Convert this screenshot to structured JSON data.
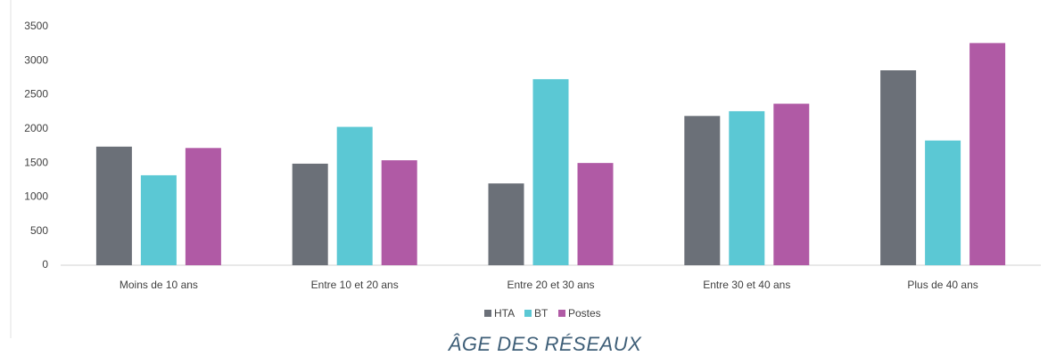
{
  "chart_data": {
    "type": "bar",
    "title": "ÂGE DES RÉSEAUX",
    "categories": [
      "Moins de 10 ans",
      "Entre 10 et 20 ans",
      "Entre 20 et 30 ans",
      "Entre 30 et 40 ans",
      "Plus de 40 ans"
    ],
    "series": [
      {
        "name": "HTA",
        "color": "#6b7078",
        "values": [
          1740,
          1490,
          1200,
          2190,
          2860
        ]
      },
      {
        "name": "BT",
        "color": "#5bc8d4",
        "values": [
          1320,
          2030,
          2730,
          2260,
          1830
        ]
      },
      {
        "name": "Postes",
        "color": "#b05aa5",
        "values": [
          1720,
          1540,
          1500,
          2370,
          3260
        ]
      }
    ],
    "ylim": [
      0,
      3500
    ],
    "yticks": [
      0,
      500,
      1000,
      1500,
      2000,
      2500,
      3000,
      3500
    ],
    "grid": false,
    "legend": "bottom"
  }
}
